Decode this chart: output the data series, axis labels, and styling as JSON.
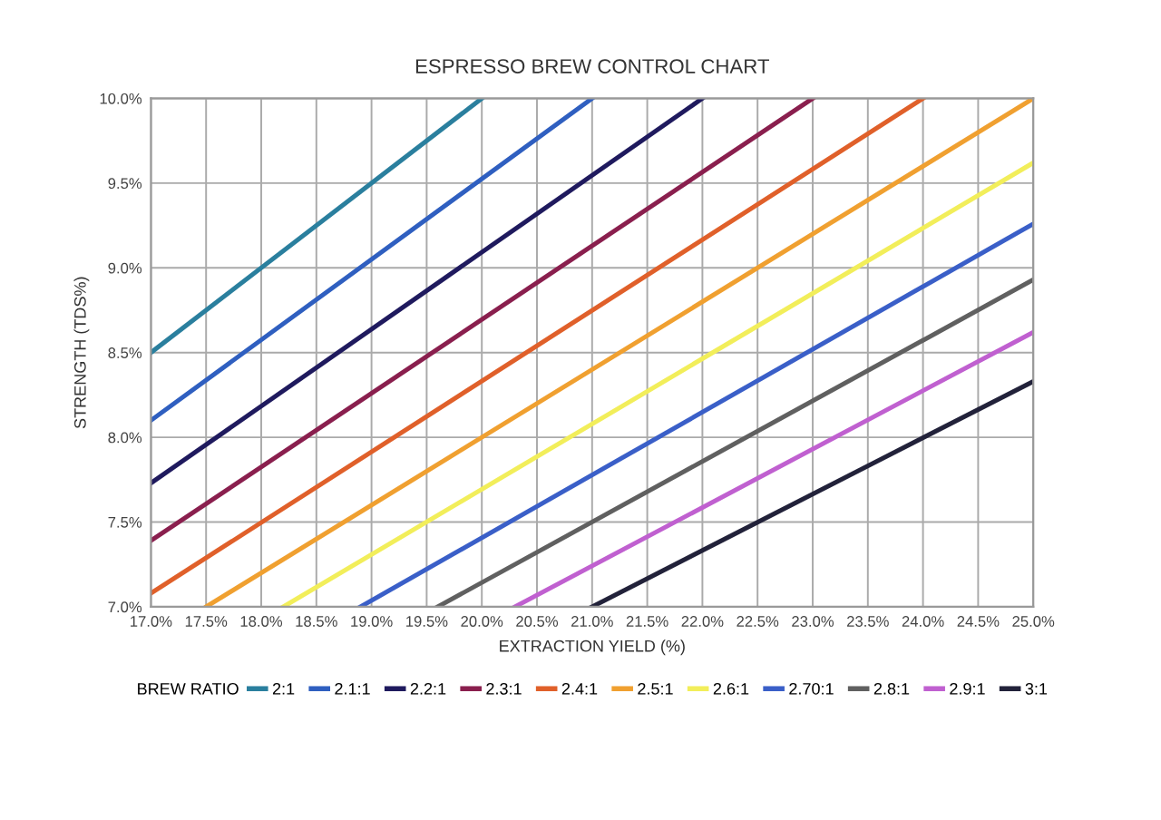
{
  "chart_data": {
    "type": "line",
    "title": "ESPRESSO BREW CONTROL CHART",
    "xlabel": "EXTRACTION YIELD (%)",
    "ylabel": "STRENGTH (TDS%)",
    "legend_title": "BREW RATIO",
    "series": [
      {
        "name": "2:1",
        "color": "#2a7f9e",
        "x": [
          17,
          20
        ],
        "values": [
          8.5,
          10
        ]
      },
      {
        "name": "2.1:1",
        "color": "#2f5fc0",
        "x": [
          17,
          21
        ],
        "values": [
          8.1,
          10
        ]
      },
      {
        "name": "2.2:1",
        "color": "#1f1a5e",
        "x": [
          17,
          22
        ],
        "values": [
          7.73,
          10
        ]
      },
      {
        "name": "2.3:1",
        "color": "#8a1f4e",
        "x": [
          17,
          23
        ],
        "values": [
          7.39,
          10
        ]
      },
      {
        "name": "2.4:1",
        "color": "#e0602a",
        "x": [
          17,
          24
        ],
        "values": [
          7.08,
          10
        ]
      },
      {
        "name": "2.5:1",
        "color": "#f0a030",
        "x": [
          17.5,
          25
        ],
        "values": [
          7,
          10
        ]
      },
      {
        "name": "2.6:1",
        "color": "#f2ee5a",
        "x": [
          18.2,
          25
        ],
        "values": [
          7,
          9.62
        ]
      },
      {
        "name": "2.70:1",
        "color": "#3a5fc8",
        "x": [
          18.9,
          25
        ],
        "values": [
          7,
          9.26
        ]
      },
      {
        "name": "2.8:1",
        "color": "#606060",
        "x": [
          19.6,
          25
        ],
        "values": [
          7,
          8.93
        ]
      },
      {
        "name": "2.9:1",
        "color": "#c060d0",
        "x": [
          20.3,
          25
        ],
        "values": [
          7,
          8.62
        ]
      },
      {
        "name": "3:1",
        "color": "#22223a",
        "x": [
          21,
          25
        ],
        "values": [
          7,
          8.33
        ]
      }
    ],
    "xlim": [
      17,
      25
    ],
    "ylim": [
      7,
      10
    ],
    "xticks": [
      {
        "value": 17,
        "label": "17.0%"
      },
      {
        "value": 17.5,
        "label": "17.5%"
      },
      {
        "value": 18,
        "label": "18.0%"
      },
      {
        "value": 18.5,
        "label": "18.5%"
      },
      {
        "value": 19,
        "label": "19.0%"
      },
      {
        "value": 19.5,
        "label": "19.5%"
      },
      {
        "value": 20,
        "label": "20.0%"
      },
      {
        "value": 20.5,
        "label": "20.5%"
      },
      {
        "value": 21,
        "label": "21.0%"
      },
      {
        "value": 21.5,
        "label": "21.5%"
      },
      {
        "value": 22,
        "label": "22.0%"
      },
      {
        "value": 22.5,
        "label": "22.5%"
      },
      {
        "value": 23,
        "label": "23.0%"
      },
      {
        "value": 23.5,
        "label": "23.5%"
      },
      {
        "value": 24,
        "label": "24.0%"
      },
      {
        "value": 24.5,
        "label": "24.5%"
      },
      {
        "value": 25,
        "label": "25.0%"
      }
    ],
    "yticks": [
      {
        "value": 7,
        "label": "7.0%"
      },
      {
        "value": 7.5,
        "label": "7.5%"
      },
      {
        "value": 8,
        "label": "8.0%"
      },
      {
        "value": 8.5,
        "label": "8.5%"
      },
      {
        "value": 9,
        "label": "9.0%"
      },
      {
        "value": 9.5,
        "label": "9.5%"
      },
      {
        "value": 10,
        "label": "10.0%"
      }
    ],
    "grid": true,
    "legend": "bottom",
    "marker": "none",
    "line_style": "solid"
  }
}
